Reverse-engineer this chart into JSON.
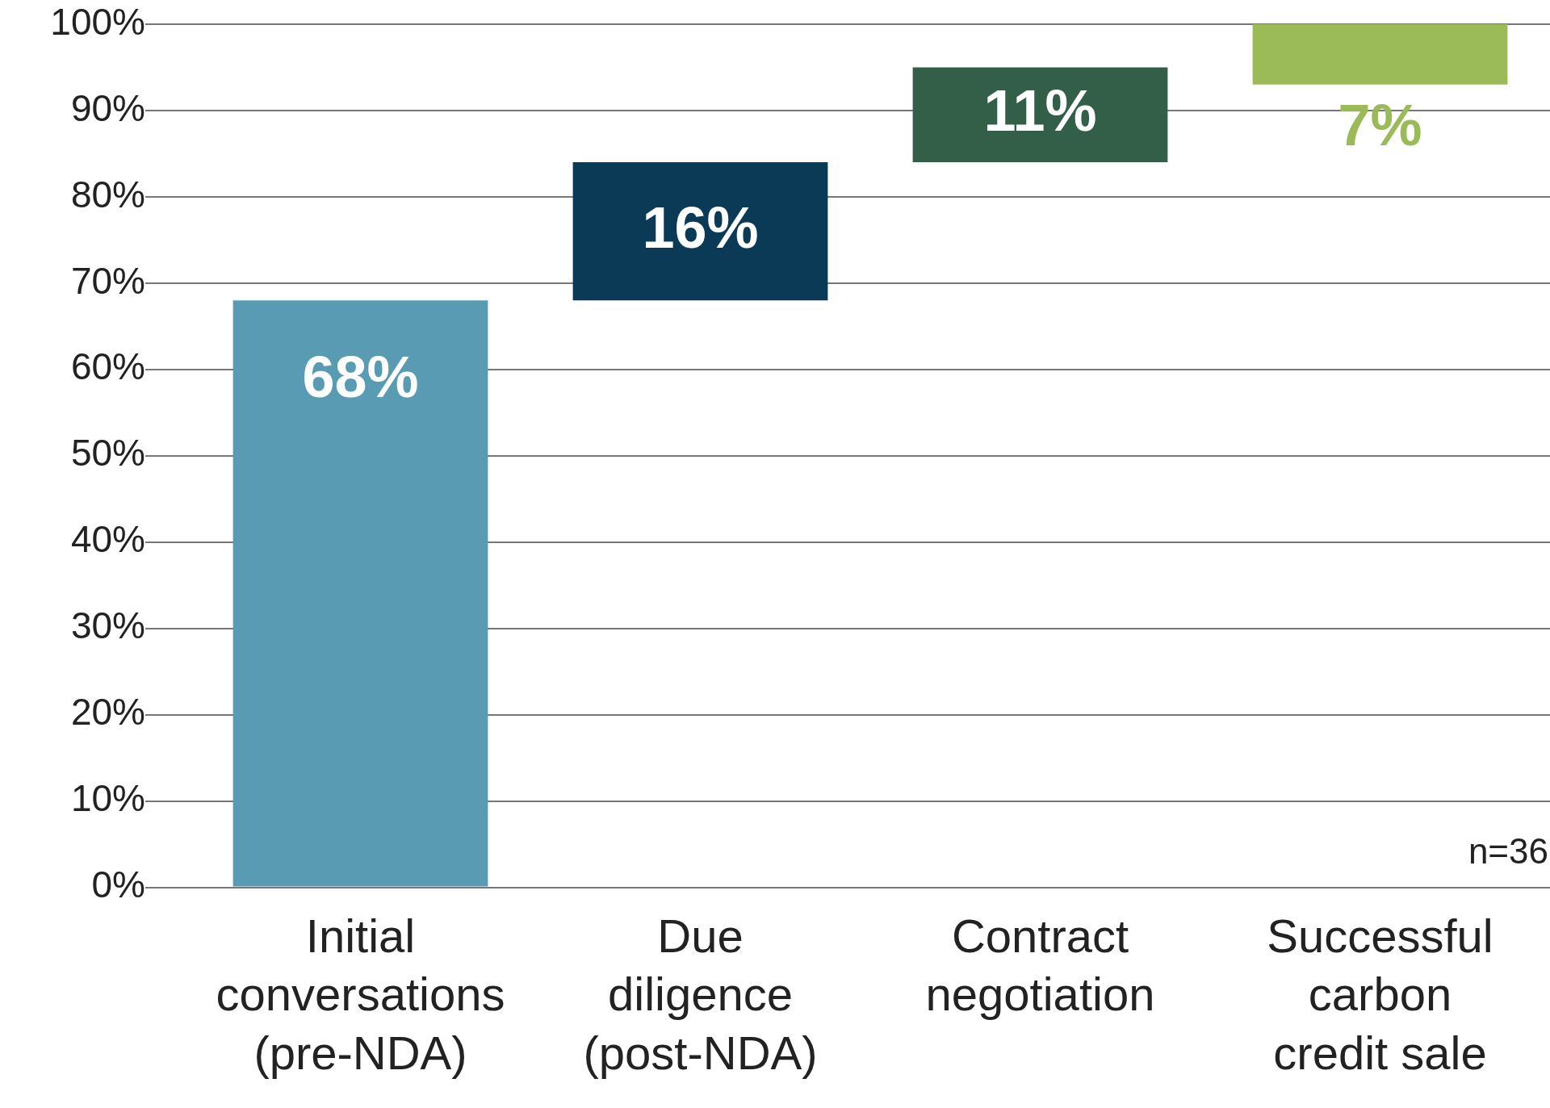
{
  "chart_data": {
    "type": "bar",
    "categories": [
      "Initial conversations (pre-NDA)",
      "Due diligence (post-NDA)",
      "Contract negotiation",
      "Successful carbon credit sale"
    ],
    "values": [
      68,
      16,
      11,
      7
    ],
    "base": [
      0,
      68,
      84,
      93
    ],
    "colors": [
      "#5a9bb4",
      "#0b3a57",
      "#335e47",
      "#9bbb59"
    ],
    "ylim": [
      0,
      100
    ],
    "yticks": [
      {
        "value": 0,
        "label": "0%"
      },
      {
        "value": 10,
        "label": "10%"
      },
      {
        "value": 20,
        "label": "20%"
      },
      {
        "value": 30,
        "label": "30%"
      },
      {
        "value": 40,
        "label": "40%"
      },
      {
        "value": 50,
        "label": "50%"
      },
      {
        "value": 60,
        "label": "60%"
      },
      {
        "value": 70,
        "label": "70%"
      },
      {
        "value": 80,
        "label": "80%"
      },
      {
        "value": 90,
        "label": "90%"
      },
      {
        "value": 100,
        "label": "100%"
      }
    ],
    "grid": "y",
    "value_labels": [
      "68%",
      "16%",
      "11%",
      "7%"
    ],
    "annotations": [
      "n=36"
    ]
  }
}
